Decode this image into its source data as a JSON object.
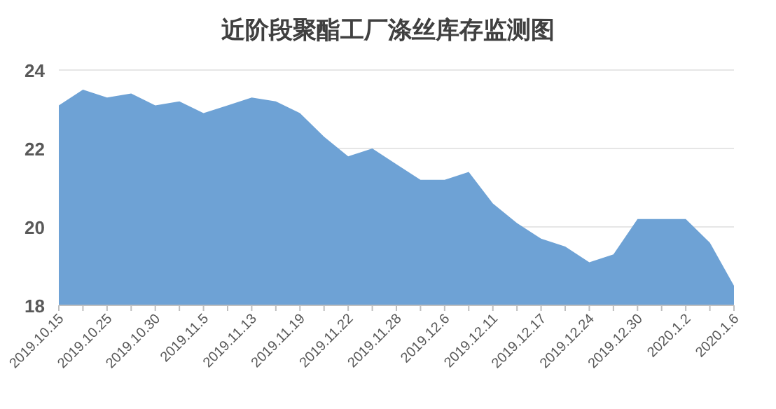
{
  "chart_data": {
    "type": "area",
    "title": "近阶段聚酯工厂涤丝库存监测图",
    "categories": [
      "2019.10.15",
      null,
      "2019.10.25",
      null,
      "2019.10.30",
      null,
      "2019.11.5",
      null,
      "2019.11.13",
      null,
      "2019.11.19",
      null,
      "2019.11.22",
      null,
      "2019.11.28",
      null,
      "2019.12.6",
      null,
      "2019.12.11",
      null,
      "2019.12.17",
      null,
      "2019.12.24",
      null,
      "2019.12.30",
      null,
      "2020.1.2",
      null,
      "2020.1.6"
    ],
    "values": [
      23.1,
      23.5,
      23.3,
      23.4,
      23.1,
      23.2,
      22.9,
      23.1,
      23.3,
      23.2,
      22.9,
      22.3,
      21.8,
      22.0,
      21.6,
      21.2,
      21.2,
      21.4,
      20.6,
      20.1,
      19.7,
      19.5,
      19.1,
      19.3,
      20.2,
      20.2,
      20.2,
      19.6,
      18.5
    ],
    "color": "#6ea2d5",
    "ylim": [
      18,
      24
    ],
    "yticks": [
      18,
      20,
      22,
      24
    ],
    "grid": "y"
  }
}
